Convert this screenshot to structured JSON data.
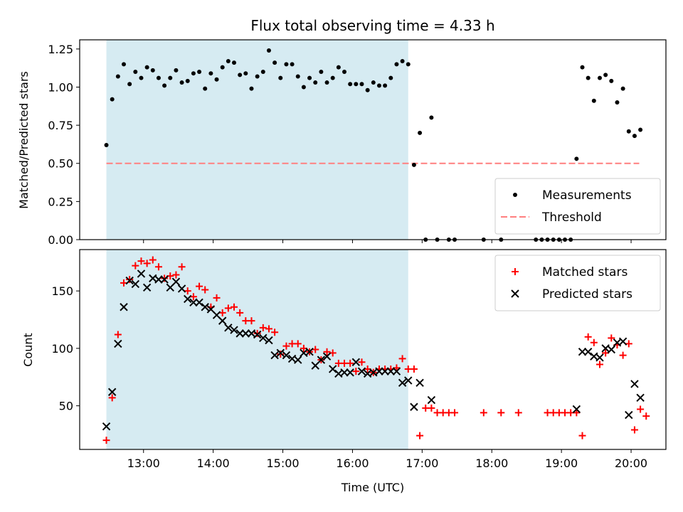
{
  "chart_data": [
    {
      "type": "scatter",
      "title": "Flux total observing time = 4.33 h",
      "ylabel": "Matched/Predicted stars",
      "xlabel": "",
      "xlim": [
        "12:05",
        "20:30"
      ],
      "ylim": [
        0,
        1.31
      ],
      "ytick_labels": [
        "0.00",
        "0.25",
        "0.50",
        "0.75",
        "1.00",
        "1.25"
      ],
      "yticks": [
        0,
        0.25,
        0.5,
        0.75,
        1.0,
        1.25
      ],
      "xticks": [
        "13:00",
        "14:00",
        "15:00",
        "16:00",
        "17:00",
        "18:00",
        "19:00",
        "20:00"
      ],
      "shaded_span": [
        "12:28",
        "16:48"
      ],
      "threshold": {
        "name": "Threshold",
        "value": 0.5,
        "x": [
          "12:28",
          "20:07"
        ],
        "color": "#ff7f7f"
      },
      "grid": false,
      "legend_position": "lower-right",
      "series": [
        {
          "name": "Measurements",
          "color": "#000000",
          "points": [
            [
              "12:28",
              0.62
            ],
            [
              "12:33",
              0.92
            ],
            [
              "12:38",
              1.07
            ],
            [
              "12:43",
              1.15
            ],
            [
              "12:48",
              1.02
            ],
            [
              "12:53",
              1.1
            ],
            [
              "12:58",
              1.06
            ],
            [
              "13:03",
              1.13
            ],
            [
              "13:08",
              1.11
            ],
            [
              "13:13",
              1.06
            ],
            [
              "13:18",
              1.01
            ],
            [
              "13:23",
              1.06
            ],
            [
              "13:28",
              1.11
            ],
            [
              "13:33",
              1.03
            ],
            [
              "13:38",
              1.04
            ],
            [
              "13:43",
              1.09
            ],
            [
              "13:48",
              1.1
            ],
            [
              "13:53",
              0.99
            ],
            [
              "13:58",
              1.09
            ],
            [
              "14:03",
              1.05
            ],
            [
              "14:08",
              1.13
            ],
            [
              "14:13",
              1.17
            ],
            [
              "14:18",
              1.16
            ],
            [
              "14:23",
              1.08
            ],
            [
              "14:28",
              1.09
            ],
            [
              "14:33",
              0.99
            ],
            [
              "14:38",
              1.07
            ],
            [
              "14:43",
              1.1
            ],
            [
              "14:48",
              1.24
            ],
            [
              "14:53",
              1.16
            ],
            [
              "14:58",
              1.06
            ],
            [
              "15:03",
              1.15
            ],
            [
              "15:08",
              1.15
            ],
            [
              "15:13",
              1.07
            ],
            [
              "15:18",
              1.0
            ],
            [
              "15:23",
              1.06
            ],
            [
              "15:28",
              1.03
            ],
            [
              "15:33",
              1.1
            ],
            [
              "15:38",
              1.03
            ],
            [
              "15:43",
              1.06
            ],
            [
              "15:48",
              1.13
            ],
            [
              "15:53",
              1.1
            ],
            [
              "15:58",
              1.02
            ],
            [
              "16:03",
              1.02
            ],
            [
              "16:08",
              1.02
            ],
            [
              "16:13",
              0.98
            ],
            [
              "16:18",
              1.03
            ],
            [
              "16:23",
              1.01
            ],
            [
              "16:28",
              1.01
            ],
            [
              "16:33",
              1.06
            ],
            [
              "16:38",
              1.15
            ],
            [
              "16:43",
              1.17
            ],
            [
              "16:48",
              1.15
            ],
            [
              "16:53",
              0.49
            ],
            [
              "16:58",
              0.7
            ],
            [
              "17:03",
              0.0
            ],
            [
              "17:08",
              0.8
            ],
            [
              "17:13",
              0.0
            ],
            [
              "17:23",
              0.0
            ],
            [
              "17:28",
              0.0
            ],
            [
              "17:53",
              0.0
            ],
            [
              "18:08",
              0.0
            ],
            [
              "18:38",
              0.0
            ],
            [
              "18:43",
              0.0
            ],
            [
              "18:48",
              0.0
            ],
            [
              "18:53",
              0.0
            ],
            [
              "18:58",
              0.0
            ],
            [
              "19:03",
              0.0
            ],
            [
              "19:08",
              0.0
            ],
            [
              "19:13",
              0.53
            ],
            [
              "19:18",
              1.13
            ],
            [
              "19:23",
              1.06
            ],
            [
              "19:28",
              0.91
            ],
            [
              "19:33",
              1.06
            ],
            [
              "19:38",
              1.08
            ],
            [
              "19:43",
              1.04
            ],
            [
              "19:48",
              0.9
            ],
            [
              "19:53",
              0.99
            ],
            [
              "19:58",
              0.71
            ],
            [
              "20:03",
              0.68
            ],
            [
              "20:08",
              0.72
            ]
          ]
        }
      ]
    },
    {
      "type": "scatter",
      "title": "",
      "ylabel": "Count",
      "xlabel": "Time (UTC)",
      "xlim": [
        "12:05",
        "20:30"
      ],
      "ylim": [
        12,
        186
      ],
      "ytick_labels": [
        "50",
        "100",
        "150"
      ],
      "yticks": [
        50,
        100,
        150
      ],
      "xticks": [
        "13:00",
        "14:00",
        "15:00",
        "16:00",
        "17:00",
        "18:00",
        "19:00",
        "20:00"
      ],
      "shaded_span": [
        "12:28",
        "16:48"
      ],
      "grid": false,
      "legend_position": "upper-right",
      "series": [
        {
          "name": "Matched stars",
          "color": "#ff0000",
          "marker": "plus",
          "points": [
            [
              "12:28",
              20
            ],
            [
              "12:33",
              57
            ],
            [
              "12:38",
              112
            ],
            [
              "12:43",
              157
            ],
            [
              "12:48",
              160
            ],
            [
              "12:53",
              172
            ],
            [
              "12:58",
              176
            ],
            [
              "13:03",
              174
            ],
            [
              "13:08",
              177
            ],
            [
              "13:13",
              171
            ],
            [
              "13:18",
              161
            ],
            [
              "13:23",
              163
            ],
            [
              "13:28",
              164
            ],
            [
              "13:33",
              171
            ],
            [
              "13:38",
              150
            ],
            [
              "13:43",
              145
            ],
            [
              "13:48",
              154
            ],
            [
              "13:53",
              151
            ],
            [
              "13:58",
              136
            ],
            [
              "14:03",
              144
            ],
            [
              "14:08",
              131
            ],
            [
              "14:13",
              135
            ],
            [
              "14:18",
              136
            ],
            [
              "14:23",
              131
            ],
            [
              "14:28",
              124
            ],
            [
              "14:33",
              124
            ],
            [
              "14:38",
              113
            ],
            [
              "14:43",
              118
            ],
            [
              "14:48",
              117
            ],
            [
              "14:53",
              114
            ],
            [
              "14:58",
              95
            ],
            [
              "15:03",
              102
            ],
            [
              "15:08",
              104
            ],
            [
              "15:13",
              104
            ],
            [
              "15:18",
              100
            ],
            [
              "15:23",
              97
            ],
            [
              "15:28",
              99
            ],
            [
              "15:33",
              90
            ],
            [
              "15:38",
              97
            ],
            [
              "15:43",
              96
            ],
            [
              "15:48",
              87
            ],
            [
              "15:53",
              87
            ],
            [
              "15:58",
              87
            ],
            [
              "16:03",
              80
            ],
            [
              "16:08",
              88
            ],
            [
              "16:13",
              82
            ],
            [
              "16:18",
              79
            ],
            [
              "16:23",
              82
            ],
            [
              "16:28",
              82
            ],
            [
              "16:33",
              82
            ],
            [
              "16:38",
              83
            ],
            [
              "16:43",
              91
            ],
            [
              "16:48",
              82
            ],
            [
              "16:53",
              82
            ],
            [
              "16:58",
              24
            ],
            [
              "17:03",
              48
            ],
            [
              "17:08",
              48
            ],
            [
              "17:13",
              44
            ],
            [
              "17:18",
              44
            ],
            [
              "17:23",
              44
            ],
            [
              "17:28",
              44
            ],
            [
              "17:53",
              44
            ],
            [
              "18:08",
              44
            ],
            [
              "18:23",
              44
            ],
            [
              "18:48",
              44
            ],
            [
              "18:53",
              44
            ],
            [
              "18:58",
              44
            ],
            [
              "19:03",
              44
            ],
            [
              "19:08",
              44
            ],
            [
              "19:13",
              44
            ],
            [
              "19:18",
              24
            ],
            [
              "19:23",
              110
            ],
            [
              "19:28",
              105
            ],
            [
              "19:33",
              86
            ],
            [
              "19:38",
              96
            ],
            [
              "19:43",
              109
            ],
            [
              "19:48",
              103
            ],
            [
              "19:53",
              94
            ],
            [
              "19:58",
              104
            ],
            [
              "20:03",
              29
            ],
            [
              "20:08",
              47
            ],
            [
              "20:13",
              41
            ]
          ]
        },
        {
          "name": "Predicted stars",
          "color": "#000000",
          "marker": "x",
          "points": [
            [
              "12:28",
              32
            ],
            [
              "12:33",
              62
            ],
            [
              "12:38",
              104
            ],
            [
              "12:43",
              136
            ],
            [
              "12:48",
              159
            ],
            [
              "12:53",
              156
            ],
            [
              "12:58",
              165
            ],
            [
              "13:03",
              153
            ],
            [
              "13:08",
              161
            ],
            [
              "13:13",
              160
            ],
            [
              "13:18",
              160
            ],
            [
              "13:23",
              153
            ],
            [
              "13:28",
              158
            ],
            [
              "13:33",
              152
            ],
            [
              "13:38",
              143
            ],
            [
              "13:43",
              140
            ],
            [
              "13:48",
              140
            ],
            [
              "13:53",
              136
            ],
            [
              "13:58",
              134
            ],
            [
              "14:03",
              129
            ],
            [
              "14:08",
              124
            ],
            [
              "14:13",
              118
            ],
            [
              "14:18",
              116
            ],
            [
              "14:23",
              113
            ],
            [
              "14:28",
              113
            ],
            [
              "14:33",
              113
            ],
            [
              "14:38",
              112
            ],
            [
              "14:43",
              109
            ],
            [
              "14:48",
              107
            ],
            [
              "14:53",
              94
            ],
            [
              "14:58",
              96
            ],
            [
              "15:03",
              94
            ],
            [
              "15:08",
              91
            ],
            [
              "15:13",
              90
            ],
            [
              "15:18",
              96
            ],
            [
              "15:23",
              97
            ],
            [
              "15:28",
              85
            ],
            [
              "15:33",
              90
            ],
            [
              "15:38",
              93
            ],
            [
              "15:43",
              82
            ],
            [
              "15:48",
              78
            ],
            [
              "15:53",
              79
            ],
            [
              "15:58",
              79
            ],
            [
              "16:03",
              88
            ],
            [
              "16:08",
              80
            ],
            [
              "16:13",
              78
            ],
            [
              "16:18",
              79
            ],
            [
              "16:23",
              80
            ],
            [
              "16:28",
              80
            ],
            [
              "16:33",
              80
            ],
            [
              "16:38",
              80
            ],
            [
              "16:43",
              70
            ],
            [
              "16:48",
              72
            ],
            [
              "16:53",
              49
            ],
            [
              "16:58",
              70
            ],
            [
              "17:08",
              55
            ],
            [
              "19:13",
              47
            ],
            [
              "19:18",
              97
            ],
            [
              "19:23",
              97
            ],
            [
              "19:28",
              93
            ],
            [
              "19:33",
              92
            ],
            [
              "19:38",
              100
            ],
            [
              "19:43",
              99
            ],
            [
              "19:48",
              105
            ],
            [
              "19:53",
              106
            ],
            [
              "19:58",
              42
            ],
            [
              "20:03",
              69
            ],
            [
              "20:08",
              57
            ]
          ]
        }
      ]
    }
  ]
}
